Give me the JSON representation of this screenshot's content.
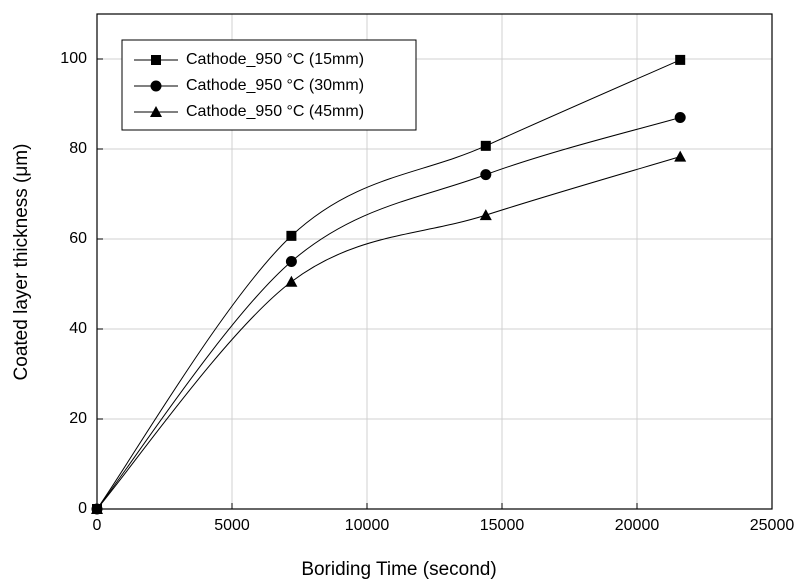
{
  "chart_data": {
    "type": "scatter",
    "x_label": "Boriding Time (second)",
    "y_label": "Coated layer thickness (μm)",
    "x": [
      0,
      7200,
      14400,
      21600
    ],
    "series": [
      {
        "name": "Cathode_950 °C (15mm)",
        "color": "#000000",
        "marker": "square",
        "values": [
          0,
          60.7,
          80.7,
          99.8
        ]
      },
      {
        "name": "Cathode_950 °C (30mm)",
        "color": "#000000",
        "marker": "circle",
        "values": [
          0,
          55,
          74.3,
          87
        ]
      },
      {
        "name": "Cathode_950 °C (45mm)",
        "color": "#000000",
        "marker": "triangle",
        "values": [
          0,
          50.5,
          65.3,
          78.3
        ]
      }
    ],
    "xlim": [
      0,
      25000
    ],
    "xticks": [
      0,
      5000,
      10000,
      15000,
      20000,
      25000
    ],
    "ylim": [
      0,
      110
    ],
    "yticks": [
      0,
      20,
      40,
      60,
      80,
      100
    ],
    "grid": true,
    "legend": "upper left"
  }
}
